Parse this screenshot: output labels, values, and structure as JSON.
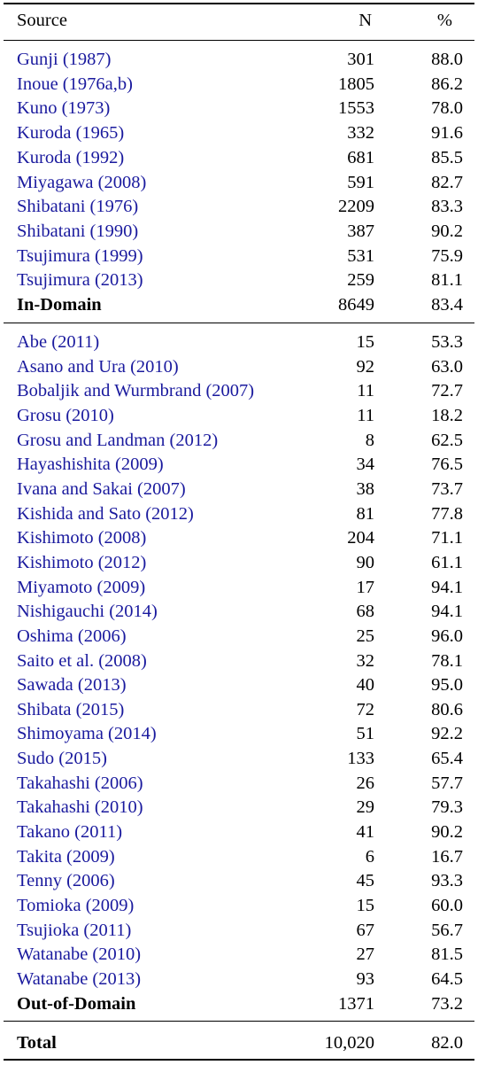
{
  "header": {
    "source": "Source",
    "n": "N",
    "pct": "%"
  },
  "in_domain": {
    "rows": [
      {
        "source": "Gunji (1987)",
        "n": "301",
        "pct": "88.0"
      },
      {
        "source": "Inoue (1976a,b)",
        "n": "1805",
        "pct": "86.2"
      },
      {
        "source": "Kuno (1973)",
        "n": "1553",
        "pct": "78.0"
      },
      {
        "source": "Kuroda (1965)",
        "n": "332",
        "pct": "91.6"
      },
      {
        "source": "Kuroda (1992)",
        "n": "681",
        "pct": "85.5"
      },
      {
        "source": "Miyagawa (2008)",
        "n": "591",
        "pct": "82.7"
      },
      {
        "source": "Shibatani (1976)",
        "n": "2209",
        "pct": "83.3"
      },
      {
        "source": "Shibatani (1990)",
        "n": "387",
        "pct": "90.2"
      },
      {
        "source": "Tsujimura (1999)",
        "n": "531",
        "pct": "75.9"
      },
      {
        "source": "Tsujimura (2013)",
        "n": "259",
        "pct": "81.1"
      }
    ],
    "subtotal": {
      "source": "In-Domain",
      "n": "8649",
      "pct": "83.4"
    }
  },
  "out_domain": {
    "rows": [
      {
        "source": "Abe (2011)",
        "n": "15",
        "pct": "53.3"
      },
      {
        "source": "Asano and Ura (2010)",
        "n": "92",
        "pct": "63.0"
      },
      {
        "source": "Bobaljik and Wurmbrand (2007)",
        "n": "11",
        "pct": "72.7"
      },
      {
        "source": "Grosu (2010)",
        "n": "11",
        "pct": "18.2"
      },
      {
        "source": "Grosu and Landman (2012)",
        "n": "8",
        "pct": "62.5"
      },
      {
        "source": "Hayashishita (2009)",
        "n": "34",
        "pct": "76.5"
      },
      {
        "source": "Ivana and Sakai (2007)",
        "n": "38",
        "pct": "73.7"
      },
      {
        "source": "Kishida and Sato (2012)",
        "n": "81",
        "pct": "77.8"
      },
      {
        "source": "Kishimoto (2008)",
        "n": "204",
        "pct": "71.1"
      },
      {
        "source": "Kishimoto (2012)",
        "n": "90",
        "pct": "61.1"
      },
      {
        "source": "Miyamoto (2009)",
        "n": "17",
        "pct": "94.1"
      },
      {
        "source": "Nishigauchi (2014)",
        "n": "68",
        "pct": "94.1"
      },
      {
        "source": "Oshima (2006)",
        "n": "25",
        "pct": "96.0"
      },
      {
        "source": "Saito et al. (2008)",
        "n": "32",
        "pct": "78.1"
      },
      {
        "source": "Sawada (2013)",
        "n": "40",
        "pct": "95.0"
      },
      {
        "source": "Shibata (2015)",
        "n": "72",
        "pct": "80.6"
      },
      {
        "source": "Shimoyama (2014)",
        "n": "51",
        "pct": "92.2"
      },
      {
        "source": "Sudo (2015)",
        "n": "133",
        "pct": "65.4"
      },
      {
        "source": "Takahashi (2006)",
        "n": "26",
        "pct": "57.7"
      },
      {
        "source": "Takahashi (2010)",
        "n": "29",
        "pct": "79.3"
      },
      {
        "source": "Takano (2011)",
        "n": "41",
        "pct": "90.2"
      },
      {
        "source": "Takita (2009)",
        "n": "6",
        "pct": "16.7"
      },
      {
        "source": "Tenny (2006)",
        "n": "45",
        "pct": "93.3"
      },
      {
        "source": "Tomioka (2009)",
        "n": "15",
        "pct": "60.0"
      },
      {
        "source": "Tsujioka (2011)",
        "n": "67",
        "pct": "56.7"
      },
      {
        "source": "Watanabe (2010)",
        "n": "27",
        "pct": "81.5"
      },
      {
        "source": "Watanabe (2013)",
        "n": "93",
        "pct": "64.5"
      }
    ],
    "subtotal": {
      "source": "Out-of-Domain",
      "n": "1371",
      "pct": "73.2"
    }
  },
  "total": {
    "source": "Total",
    "n": "10,020",
    "pct": "82.0"
  },
  "colors": {
    "link": "#1a1a9e",
    "text": "#000000"
  }
}
